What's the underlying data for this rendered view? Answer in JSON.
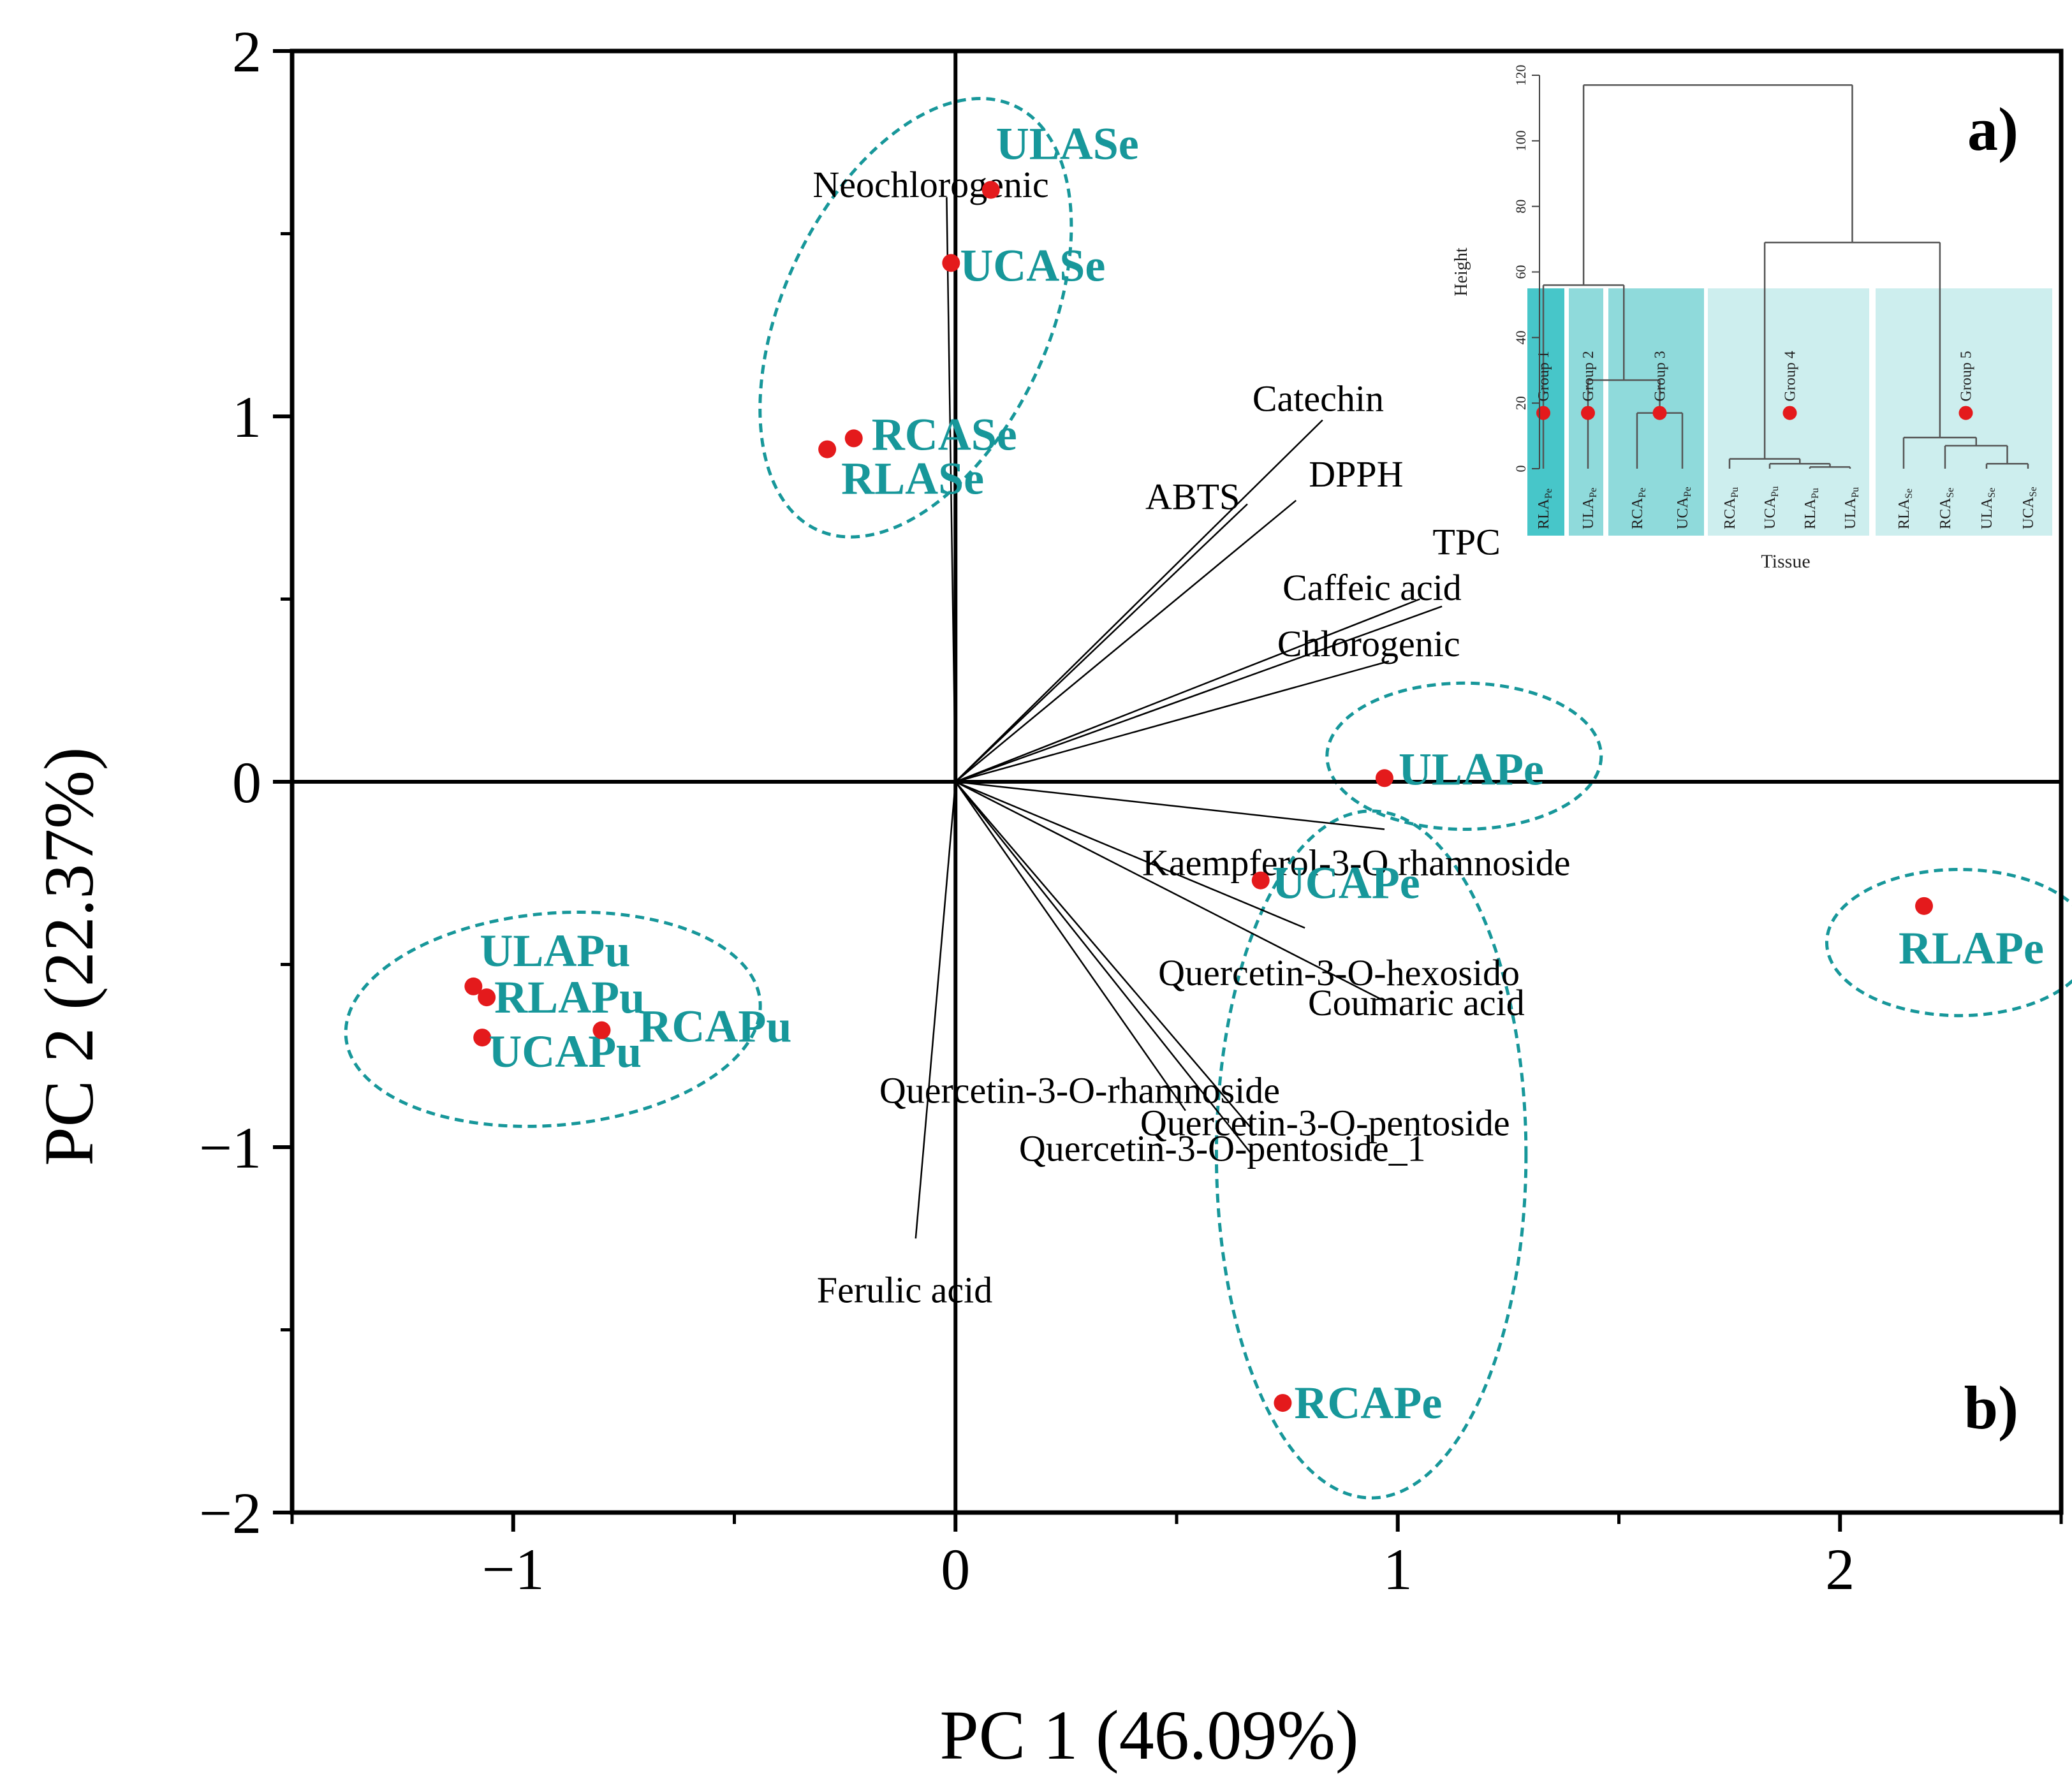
{
  "figure": {
    "panel_a_label": "a)",
    "panel_b_label": "b)"
  },
  "colors": {
    "point": "#e41a1c",
    "teal": "#17979a",
    "ellipse": "#17979a",
    "axis": "#000000",
    "group_dark": "#47c6c9",
    "group_mid": "#8fdadb",
    "group_light": "#cdeeee"
  },
  "chart_data": [
    {
      "type": "scatter",
      "subtype": "pca-biplot",
      "xlabel": "PC 1 (46.09%)",
      "ylabel": "PC 2 (22.37%)",
      "xlim": [
        -1.5,
        2.5
      ],
      "ylim": [
        -2,
        2
      ],
      "x_ticks": [
        -1,
        0,
        1,
        2
      ],
      "x_tick_labels": [
        "−1",
        "0",
        "1",
        "2"
      ],
      "y_ticks": [
        -2,
        -1,
        0,
        1,
        2
      ],
      "y_tick_labels": [
        "−2",
        "−1",
        "0",
        "1",
        "2"
      ],
      "grid": false,
      "reference_lines": {
        "x": 0,
        "y": 0
      },
      "scores": [
        {
          "label": "ULASe",
          "x": 0.08,
          "y": 1.62
        },
        {
          "label": "UCASe",
          "x": -0.01,
          "y": 1.42
        },
        {
          "label": "RCASe",
          "x": -0.23,
          "y": 0.94
        },
        {
          "label": "RLASe",
          "x": -0.29,
          "y": 0.91
        },
        {
          "label": "ULAPe",
          "x": 0.97,
          "y": 0.01
        },
        {
          "label": "UCAPe",
          "x": 0.69,
          "y": -0.27
        },
        {
          "label": "RCAPe",
          "x": 0.74,
          "y": -1.7
        },
        {
          "label": "RLAPe",
          "x": 2.19,
          "y": -0.34
        },
        {
          "label": "ULAPu",
          "x": -1.09,
          "y": -0.56
        },
        {
          "label": "RLAPu",
          "x": -1.06,
          "y": -0.59
        },
        {
          "label": "UCAPu",
          "x": -1.07,
          "y": -0.7
        },
        {
          "label": "RCAPu",
          "x": -0.8,
          "y": -0.68
        }
      ],
      "loadings": [
        {
          "label": "Neochlorogenic",
          "x": -0.02,
          "y": 1.6
        },
        {
          "label": "Catechin",
          "x": 0.83,
          "y": 0.99
        },
        {
          "label": "ABTS",
          "x": 0.66,
          "y": 0.76
        },
        {
          "label": "DPPH",
          "x": 0.77,
          "y": 0.77
        },
        {
          "label": "TPC",
          "x": 1.05,
          "y": 0.5
        },
        {
          "label": "Caffeic acid",
          "x": 1.1,
          "y": 0.48
        },
        {
          "label": "Chlorogenic",
          "x": 0.98,
          "y": 0.33
        },
        {
          "label": "Kaempferol-3-O rhamnoside",
          "x": 0.97,
          "y": -0.13
        },
        {
          "label": "Quercetin-3-O-hexosido",
          "x": 0.79,
          "y": -0.4
        },
        {
          "label": "Coumaric acid",
          "x": 0.97,
          "y": -0.6
        },
        {
          "label": "Quercetin-3-O-rhamnoside",
          "x": 0.52,
          "y": -0.9
        },
        {
          "label": "Quercetin-3-O-pentoside",
          "x": 0.67,
          "y": -0.95
        },
        {
          "label": "Quercetin-3-O-pentoside_1",
          "x": 0.67,
          "y": -1.02
        },
        {
          "label": "Ferulic acid",
          "x": -0.09,
          "y": -1.25
        }
      ],
      "ellipses": [
        {
          "name": "Se group",
          "cx": -0.09,
          "cy": 1.27,
          "rx": 0.3,
          "ry": 0.64,
          "rotation_deg": 25
        },
        {
          "name": "ULAPe group",
          "cx": 1.15,
          "cy": 0.07,
          "rx": 0.31,
          "ry": 0.2,
          "rotation_deg": 0
        },
        {
          "name": "Pe group",
          "cx": 0.94,
          "cy": -1.02,
          "rx": 0.35,
          "ry": 0.94,
          "rotation_deg": 0
        },
        {
          "name": "RLAPe group",
          "cx": 2.27,
          "cy": -0.44,
          "rx": 0.3,
          "ry": 0.2,
          "rotation_deg": 0
        },
        {
          "name": "Pu group",
          "cx": -0.91,
          "cy": -0.65,
          "rx": 0.47,
          "ry": 0.29,
          "rotation_deg": -5
        }
      ]
    },
    {
      "type": "dendrogram",
      "ylabel": "Height",
      "xlabel": "Tissue",
      "ylim": [
        0,
        120
      ],
      "y_ticks": [
        0,
        20,
        40,
        60,
        80,
        100,
        120
      ],
      "cut_height": 55,
      "leaves": [
        {
          "base": "RLA",
          "sub": "Pe"
        },
        {
          "base": "ULA",
          "sub": "Pe"
        },
        {
          "base": "RCA",
          "sub": "Pe"
        },
        {
          "base": "UCA",
          "sub": "Pe"
        },
        {
          "base": "RCA",
          "sub": "Pu"
        },
        {
          "base": "UCA",
          "sub": "Pu"
        },
        {
          "base": "RLA",
          "sub": "Pu"
        },
        {
          "base": "ULA",
          "sub": "Pu"
        },
        {
          "base": "RLA",
          "sub": "Se"
        },
        {
          "base": "RCA",
          "sub": "Se"
        },
        {
          "base": "ULA",
          "sub": "Se"
        },
        {
          "base": "UCA",
          "sub": "Se"
        }
      ],
      "merges": [
        {
          "a": 2,
          "b": 3,
          "height": 17
        },
        {
          "a": 12,
          "b": 1,
          "height": 27
        },
        {
          "a": 0,
          "b": 13,
          "height": 56
        },
        {
          "a": 6,
          "b": 7,
          "height": 0.5
        },
        {
          "a": 5,
          "b": 15,
          "height": 1.5
        },
        {
          "a": 4,
          "b": 16,
          "height": 3
        },
        {
          "a": 10,
          "b": 11,
          "height": 1.5
        },
        {
          "a": 9,
          "b": 18,
          "height": 7
        },
        {
          "a": 8,
          "b": 19,
          "height": 9.5
        },
        {
          "a": 17,
          "b": 20,
          "height": 69
        },
        {
          "a": 14,
          "b": 21,
          "height": 117
        }
      ],
      "groups": [
        {
          "label": "Group 1",
          "leaves": [
            0,
            0
          ],
          "shade": "group_dark",
          "marker_height": 17
        },
        {
          "label": "Group 2",
          "leaves": [
            1,
            1
          ],
          "shade": "group_mid",
          "marker_height": 17
        },
        {
          "label": "Group 3",
          "leaves": [
            2,
            3
          ],
          "shade": "group_mid",
          "marker_height": 17
        },
        {
          "label": "Group 4",
          "leaves": [
            4,
            7
          ],
          "shade": "group_light",
          "marker_height": 17
        },
        {
          "label": "Group 5",
          "leaves": [
            8,
            11
          ],
          "shade": "group_light",
          "marker_height": 17
        }
      ]
    }
  ]
}
